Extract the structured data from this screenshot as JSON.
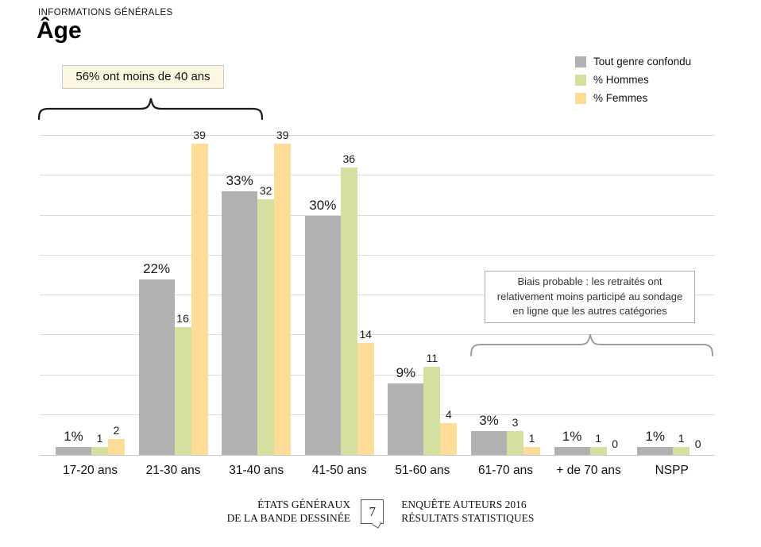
{
  "header": {
    "kicker": "INFORMATIONS GÉNÉRALES",
    "title": "Âge"
  },
  "legend": [
    {
      "name": "gray-swatch",
      "label": "Tout genre confondu",
      "color": "#b1b1b1"
    },
    {
      "name": "green-swatch",
      "label": "% Hommes",
      "color": "#d5e0a0"
    },
    {
      "name": "yellow-swatch",
      "label": "% Femmes",
      "color": "#fcdc97"
    }
  ],
  "annotations": {
    "left_box": "56% ont moins de 40 ans",
    "right_box_lines": [
      "Biais probable : les retraités ont",
      "relativement moins participé au sondage",
      "en ligne que les autres catégories"
    ]
  },
  "chart_data": {
    "type": "bar",
    "title": "Âge",
    "categories": [
      "17-20 ans",
      "21-30 ans",
      "31-40 ans",
      "41-50 ans",
      "51-60 ans",
      "61-70 ans",
      "+ de 70 ans",
      "NSPP"
    ],
    "series": [
      {
        "name": "Tout genre confondu",
        "color": "#b1b1b1",
        "values": [
          1,
          22,
          33,
          30,
          9,
          3,
          1,
          1
        ],
        "labels": [
          "1%",
          "22%",
          "33%",
          "30%",
          "9%",
          "3%",
          "1%",
          "1%"
        ]
      },
      {
        "name": "% Hommes",
        "color": "#d5e0a0",
        "values": [
          1,
          16,
          32,
          36,
          11,
          3,
          1,
          1
        ],
        "labels": [
          "1",
          "16",
          "32",
          "36",
          "11",
          "3",
          "1",
          "1"
        ]
      },
      {
        "name": "% Femmes",
        "color": "#fcdc97",
        "values": [
          2,
          39,
          39,
          14,
          4,
          1,
          0,
          0
        ],
        "labels": [
          "2",
          "39",
          "39",
          "14",
          "4",
          "1",
          "0",
          "0"
        ]
      }
    ],
    "xlabel": "",
    "ylabel": "",
    "ylim": [
      0,
      40
    ],
    "gridline_step": 5,
    "grid": true,
    "legend_position": "top-right"
  },
  "colors": {
    "gridline": "#dcdcdc",
    "axis": "#c9c9c9",
    "note_box_bg": "#fbf7e0",
    "note_box_border": "#c9c9c9",
    "bias_box_border": "#ababab",
    "brace_black": "#1a1a1a",
    "brace_gray": "#9e9e9e"
  },
  "footer": {
    "left_lines": [
      "ÉTATS GÉNÉRAUX",
      "DE LA BANDE DESSINÉE"
    ],
    "page_number": "7",
    "right_lines": [
      "ENQUÊTE AUTEURS 2016",
      "RÉSULTATS STATISTIQUES"
    ]
  }
}
